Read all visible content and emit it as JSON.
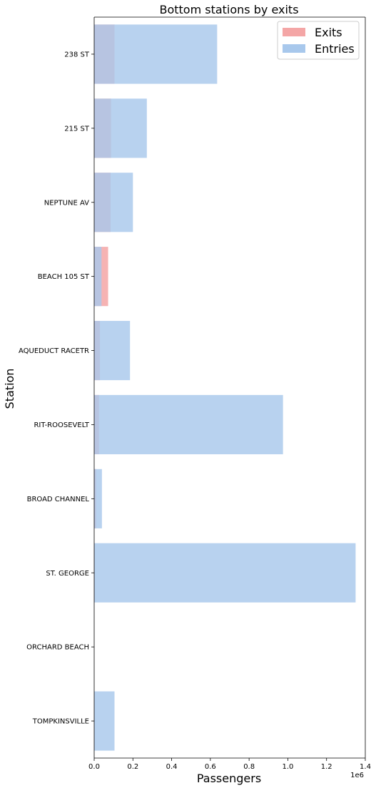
{
  "chart_data": {
    "type": "bar",
    "orientation": "horizontal",
    "title": "Bottom stations by exits",
    "xlabel": "Passengers",
    "ylabel": "Station",
    "x_offset_label": "1e6",
    "x_scale": 1000000,
    "xlim": [
      0,
      1.4
    ],
    "x_ticks": [
      0.0,
      0.2,
      0.4,
      0.6,
      0.8,
      1.0,
      1.2,
      1.4
    ],
    "x_tick_labels": [
      "0.0",
      "0.2",
      "0.4",
      "0.6",
      "0.8",
      "1.0",
      "1.2",
      "1.4"
    ],
    "categories": [
      "238 ST",
      "215 ST",
      "NEPTUNE AV",
      "BEACH 105 ST",
      "AQUEDUCT RACETR",
      "RIT-ROOSEVELT",
      "BROAD CHANNEL",
      "ST. GEORGE",
      "ORCHARD BEACH",
      "TOMPKINSVILLE"
    ],
    "series": [
      {
        "name": "Exits",
        "color": "#f4a6a6",
        "values": [
          0.105,
          0.087,
          0.085,
          0.072,
          0.03,
          0.025,
          0.01,
          0.003,
          0.0,
          0.0
        ]
      },
      {
        "name": "Entries",
        "color": "#a8c8ec",
        "values": [
          0.635,
          0.272,
          0.2,
          0.038,
          0.185,
          0.975,
          0.04,
          1.35,
          0.0,
          0.105
        ]
      }
    ],
    "legend_position": "top-right",
    "grid": false
  }
}
